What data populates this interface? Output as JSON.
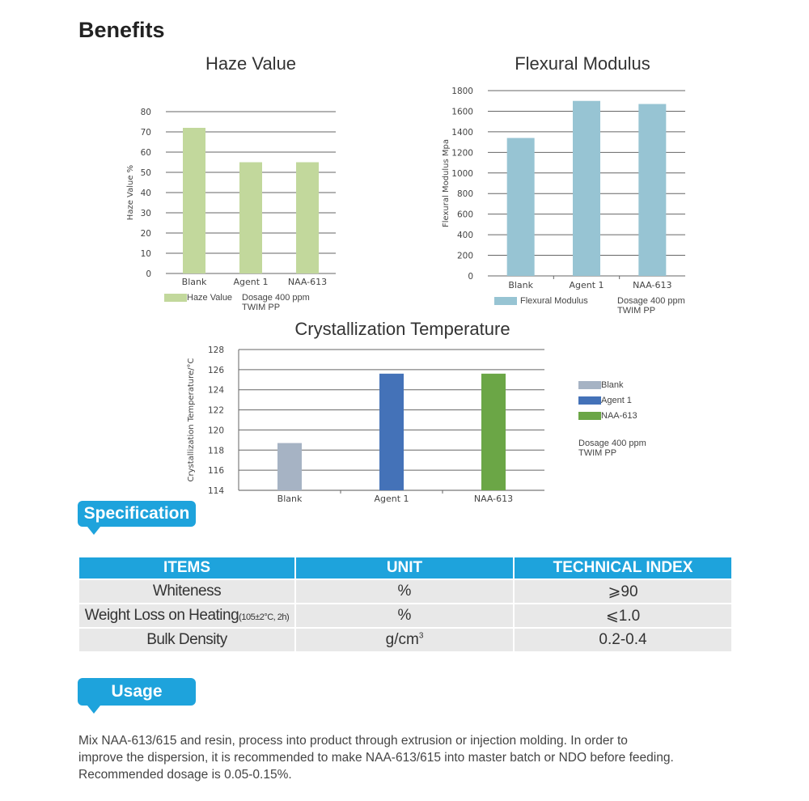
{
  "benefits_heading": "Benefits",
  "charts": [
    {
      "title": "Haze Value",
      "ylabel": "Haze Value %",
      "ylim": [
        0,
        80
      ],
      "ticks": [
        0,
        10,
        20,
        30,
        40,
        50,
        60,
        70,
        80
      ],
      "categories": [
        "Blank",
        "Agent 1",
        "NAA-613"
      ],
      "values": [
        72,
        55,
        55
      ],
      "color": "#c2d89c",
      "legend": "Haze Value",
      "note_line1": "Dosage 400 ppm",
      "note_line2": "TWIM PP"
    },
    {
      "title": "Flexural Modulus",
      "ylabel": "Flexural Modulus Mpa",
      "ylim": [
        0,
        1800
      ],
      "ticks": [
        0,
        200,
        400,
        600,
        800,
        1000,
        1200,
        1400,
        1600,
        1800
      ],
      "categories": [
        "Blank",
        "Agent 1",
        "NAA-613"
      ],
      "values": [
        1340,
        1700,
        1670
      ],
      "color": "#97c4d3",
      "legend": "Flexural Modulus",
      "note_line1": "Dosage 400 ppm",
      "note_line2": "TWIM PP"
    },
    {
      "title": "Crystallization Temperature",
      "ylabel": "Crystallization Temperature/°C",
      "ylim": [
        114,
        128
      ],
      "ticks": [
        114,
        116,
        118,
        120,
        122,
        124,
        126,
        128
      ],
      "categories": [
        "Blank",
        "Agent 1",
        "NAA-613"
      ],
      "values": [
        118.7,
        125.6,
        125.6
      ],
      "colors": [
        "#a6b3c4",
        "#4472b8",
        "#6ba646"
      ],
      "legend_items": [
        "Blank",
        "Agent 1",
        "NAA-613"
      ],
      "note_line1": "Dosage 400 ppm",
      "note_line2": "TWIM PP"
    }
  ],
  "chart_data": [
    {
      "type": "bar",
      "title": "Haze Value",
      "ylabel": "Haze Value %",
      "categories": [
        "Blank",
        "Agent 1",
        "NAA-613"
      ],
      "series": [
        {
          "name": "Haze Value",
          "values": [
            72,
            55,
            55
          ]
        }
      ],
      "ylim": [
        0,
        80
      ],
      "grid": true,
      "legend": "bottom"
    },
    {
      "type": "bar",
      "title": "Flexural Modulus",
      "ylabel": "Flexural Modulus Mpa",
      "categories": [
        "Blank",
        "Agent 1",
        "NAA-613"
      ],
      "series": [
        {
          "name": "Flexural Modulus",
          "values": [
            1340,
            1700,
            1670
          ]
        }
      ],
      "ylim": [
        0,
        1800
      ],
      "grid": true,
      "legend": "bottom"
    },
    {
      "type": "bar",
      "title": "Crystallization Temperature",
      "ylabel": "Crystallization Temperature/°C",
      "categories": [
        "Blank",
        "Agent 1",
        "NAA-613"
      ],
      "values": [
        118.7,
        125.6,
        125.6
      ],
      "ylim": [
        114,
        128
      ],
      "grid": true,
      "legend": "right"
    }
  ],
  "specification": {
    "tag": "Specification",
    "headers": [
      "ITEMS",
      "UNIT",
      "TECHNICAL INDEX"
    ],
    "rows": [
      {
        "item": "Whiteness",
        "item_small": "",
        "unit": "%",
        "unit_sup": "",
        "index": "⩾90"
      },
      {
        "item": "Weight Loss on Heating",
        "item_small": "(105±2°C, 2h)",
        "unit": "%",
        "unit_sup": "",
        "index": "⩽1.0"
      },
      {
        "item": "Bulk Density",
        "item_small": "",
        "unit": "g/cm",
        "unit_sup": "3",
        "index": "0.2-0.4"
      }
    ]
  },
  "usage": {
    "tag": "Usage",
    "text_line1": "Mix NAA-613/615 and resin, process into product through extrusion or injection molding. In order to",
    "text_line2": "improve the dispersion, it is recommended to make NAA-613/615 into master batch or NDO before feeding.",
    "text_line3": "Recommended dosage is 0.05-0.15%."
  },
  "colors": {
    "accent": "#1ea3dc",
    "table_cell": "#e8e8e8"
  }
}
